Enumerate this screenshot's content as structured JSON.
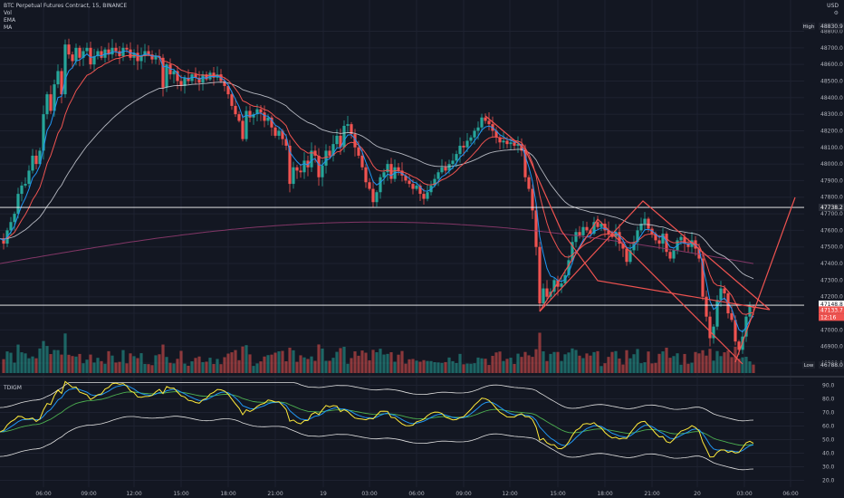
{
  "header": {
    "symbol": "BTC Perpetual Futures Contract, 15, BINANCE",
    "vol_label": "Vol",
    "ema_label": "EMA",
    "ma_label": "MA",
    "currency": "USD",
    "settings_icon": "gear-icon"
  },
  "indicator": {
    "name": "TDIGM"
  },
  "colors": {
    "background": "#131722",
    "grid": "#1e2230",
    "up": "#26a69a",
    "down": "#ef5350",
    "ema_fast": "#2196f3",
    "ema_slow": "#ef5350",
    "ma_white": "#d1d4dc",
    "ma_long": "#8e3a6e",
    "trend_line": "#ef5350",
    "tdi_price": "#ffeb3b",
    "tdi_signal": "#2196f3",
    "tdi_base": "#4caf50",
    "tdi_band": "#e0e0e0",
    "axis_text": "#b2b5be"
  },
  "chart_data": {
    "type": "candlestick",
    "title": "BTC Perpetual Futures Contract, 15, BINANCE",
    "price_axis": {
      "ticks": [
        "48800.0",
        "48700.0",
        "48600.0",
        "48500.0",
        "48400.0",
        "48300.0",
        "48200.0",
        "48100.0",
        "48000.0",
        "47900.0",
        "47800.0",
        "47700.0",
        "47600.0",
        "47500.0",
        "47400.0",
        "47300.0",
        "47200.0",
        "47100.0",
        "47000.0",
        "46900.0",
        "46800.0"
      ],
      "range": [
        46740,
        48890
      ]
    },
    "time_axis": {
      "ticks": [
        "06:00",
        "09:00",
        "12:00",
        "15:00",
        "18:00",
        "21:00",
        "19",
        "03:00",
        "06:00",
        "09:00",
        "12:00",
        "15:00",
        "18:00",
        "21:00",
        "20",
        "03:00",
        "06:00"
      ]
    },
    "price_labels": {
      "high": {
        "label": "High",
        "value": "48830.9"
      },
      "level_upper": {
        "value": "47738.2"
      },
      "level_current": {
        "value": "47148.8"
      },
      "current_price": {
        "value": "47133.7",
        "countdown": "12:16"
      },
      "low": {
        "label": "Low",
        "value": "46788.0"
      }
    },
    "horizontal_levels": [
      47738.2,
      47148.8
    ],
    "close_path": [
      [
        0,
        47550
      ],
      [
        4,
        47520
      ],
      [
        8,
        47600
      ],
      [
        12,
        47650
      ],
      [
        16,
        47700
      ],
      [
        20,
        47820
      ],
      [
        24,
        47870
      ],
      [
        28,
        47880
      ],
      [
        32,
        47960
      ],
      [
        36,
        48050
      ],
      [
        40,
        48000
      ],
      [
        44,
        48080
      ],
      [
        48,
        48300
      ],
      [
        52,
        48420
      ],
      [
        56,
        48320
      ],
      [
        60,
        48480
      ],
      [
        64,
        48560
      ],
      [
        68,
        48420
      ],
      [
        72,
        48720
      ],
      [
        76,
        48660
      ],
      [
        80,
        48620
      ],
      [
        84,
        48700
      ],
      [
        88,
        48640
      ],
      [
        92,
        48680
      ],
      [
        96,
        48700
      ],
      [
        100,
        48600
      ],
      [
        104,
        48650
      ],
      [
        108,
        48680
      ],
      [
        112,
        48640
      ],
      [
        116,
        48690
      ],
      [
        120,
        48660
      ],
      [
        124,
        48700
      ],
      [
        128,
        48680
      ],
      [
        132,
        48650
      ],
      [
        136,
        48700
      ],
      [
        140,
        48690
      ],
      [
        144,
        48640
      ],
      [
        148,
        48670
      ],
      [
        152,
        48620
      ],
      [
        156,
        48650
      ],
      [
        160,
        48680
      ],
      [
        164,
        48660
      ],
      [
        168,
        48630
      ],
      [
        172,
        48650
      ],
      [
        176,
        48640
      ],
      [
        180,
        48460
      ],
      [
        184,
        48600
      ],
      [
        188,
        48540
      ],
      [
        192,
        48560
      ],
      [
        196,
        48500
      ],
      [
        200,
        48470
      ],
      [
        204,
        48520
      ],
      [
        208,
        48500
      ],
      [
        212,
        48540
      ],
      [
        216,
        48520
      ],
      [
        220,
        48490
      ],
      [
        224,
        48540
      ],
      [
        228,
        48510
      ],
      [
        232,
        48550
      ],
      [
        236,
        48520
      ],
      [
        240,
        48540
      ],
      [
        244,
        48500
      ],
      [
        248,
        48470
      ],
      [
        252,
        48420
      ],
      [
        256,
        48350
      ],
      [
        260,
        48300
      ],
      [
        264,
        48260
      ],
      [
        268,
        48150
      ],
      [
        272,
        48320
      ],
      [
        276,
        48280
      ],
      [
        280,
        48300
      ],
      [
        284,
        48330
      ],
      [
        288,
        48310
      ],
      [
        292,
        48260
      ],
      [
        296,
        48280
      ],
      [
        300,
        48220
      ],
      [
        304,
        48170
      ],
      [
        308,
        48200
      ],
      [
        312,
        48150
      ],
      [
        316,
        48110
      ],
      [
        320,
        47880
      ],
      [
        324,
        47980
      ],
      [
        328,
        47960
      ],
      [
        332,
        47950
      ],
      [
        336,
        48020
      ],
      [
        340,
        47980
      ],
      [
        344,
        48080
      ],
      [
        348,
        48050
      ],
      [
        352,
        47920
      ],
      [
        356,
        47990
      ],
      [
        360,
        48080
      ],
      [
        364,
        48050
      ],
      [
        368,
        48120
      ],
      [
        372,
        48170
      ],
      [
        376,
        48100
      ],
      [
        380,
        48230
      ],
      [
        384,
        48240
      ],
      [
        388,
        48180
      ],
      [
        392,
        48100
      ],
      [
        396,
        48050
      ],
      [
        400,
        47980
      ],
      [
        404,
        47890
      ],
      [
        408,
        47850
      ],
      [
        412,
        47770
      ],
      [
        416,
        47830
      ],
      [
        420,
        47920
      ],
      [
        424,
        47950
      ],
      [
        428,
        48000
      ],
      [
        432,
        47910
      ],
      [
        436,
        47980
      ],
      [
        440,
        47960
      ],
      [
        444,
        47930
      ],
      [
        448,
        47900
      ],
      [
        452,
        47880
      ],
      [
        456,
        47850
      ],
      [
        460,
        47870
      ],
      [
        464,
        47820
      ],
      [
        468,
        47790
      ],
      [
        472,
        47830
      ],
      [
        476,
        47870
      ],
      [
        480,
        47910
      ],
      [
        484,
        47950
      ],
      [
        488,
        47980
      ],
      [
        492,
        47960
      ],
      [
        496,
        48000
      ],
      [
        500,
        48020
      ],
      [
        504,
        48060
      ],
      [
        508,
        48110
      ],
      [
        512,
        48100
      ],
      [
        516,
        48140
      ],
      [
        520,
        48160
      ],
      [
        524,
        48200
      ],
      [
        528,
        48220
      ],
      [
        532,
        48280
      ],
      [
        536,
        48260
      ],
      [
        540,
        48240
      ],
      [
        544,
        48200
      ],
      [
        548,
        48160
      ],
      [
        552,
        48130
      ],
      [
        556,
        48140
      ],
      [
        560,
        48120
      ],
      [
        564,
        48130
      ],
      [
        568,
        48110
      ],
      [
        572,
        48120
      ],
      [
        576,
        48080
      ],
      [
        580,
        47920
      ],
      [
        584,
        47850
      ],
      [
        588,
        47720
      ],
      [
        592,
        47500
      ],
      [
        596,
        47160
      ],
      [
        600,
        47250
      ],
      [
        604,
        47200
      ],
      [
        608,
        47230
      ],
      [
        612,
        47300
      ],
      [
        616,
        47260
      ],
      [
        620,
        47280
      ],
      [
        624,
        47330
      ],
      [
        628,
        47420
      ],
      [
        632,
        47530
      ],
      [
        636,
        47590
      ],
      [
        640,
        47570
      ],
      [
        644,
        47620
      ],
      [
        648,
        47600
      ],
      [
        652,
        47580
      ],
      [
        656,
        47650
      ],
      [
        660,
        47620
      ],
      [
        664,
        47640
      ],
      [
        668,
        47600
      ],
      [
        672,
        47580
      ],
      [
        676,
        47560
      ],
      [
        680,
        47590
      ],
      [
        684,
        47520
      ],
      [
        688,
        47490
      ],
      [
        692,
        47410
      ],
      [
        696,
        47480
      ],
      [
        700,
        47530
      ],
      [
        704,
        47600
      ],
      [
        708,
        47640
      ],
      [
        712,
        47670
      ],
      [
        716,
        47610
      ],
      [
        720,
        47580
      ],
      [
        724,
        47540
      ],
      [
        728,
        47520
      ],
      [
        732,
        47580
      ],
      [
        736,
        47470
      ],
      [
        740,
        47430
      ],
      [
        744,
        47480
      ],
      [
        748,
        47540
      ],
      [
        752,
        47560
      ],
      [
        756,
        47520
      ],
      [
        760,
        47500
      ],
      [
        764,
        47540
      ],
      [
        768,
        47490
      ],
      [
        772,
        47430
      ],
      [
        776,
        47200
      ],
      [
        780,
        47080
      ],
      [
        784,
        46950
      ],
      [
        788,
        47020
      ],
      [
        792,
        47180
      ],
      [
        796,
        47250
      ],
      [
        800,
        47220
      ],
      [
        804,
        47100
      ],
      [
        808,
        47060
      ],
      [
        812,
        46930
      ],
      [
        816,
        46880
      ],
      [
        820,
        46960
      ],
      [
        824,
        47080
      ],
      [
        828,
        47140
      ],
      [
        832,
        47134
      ]
    ],
    "volume_note": "volume histogram aligned with candles",
    "tdi_axis": {
      "ticks": [
        "90.0",
        "80.0",
        "70.0",
        "60.0",
        "50.0",
        "40.0",
        "30.0",
        "20.0"
      ],
      "range": [
        15,
        95
      ]
    }
  }
}
